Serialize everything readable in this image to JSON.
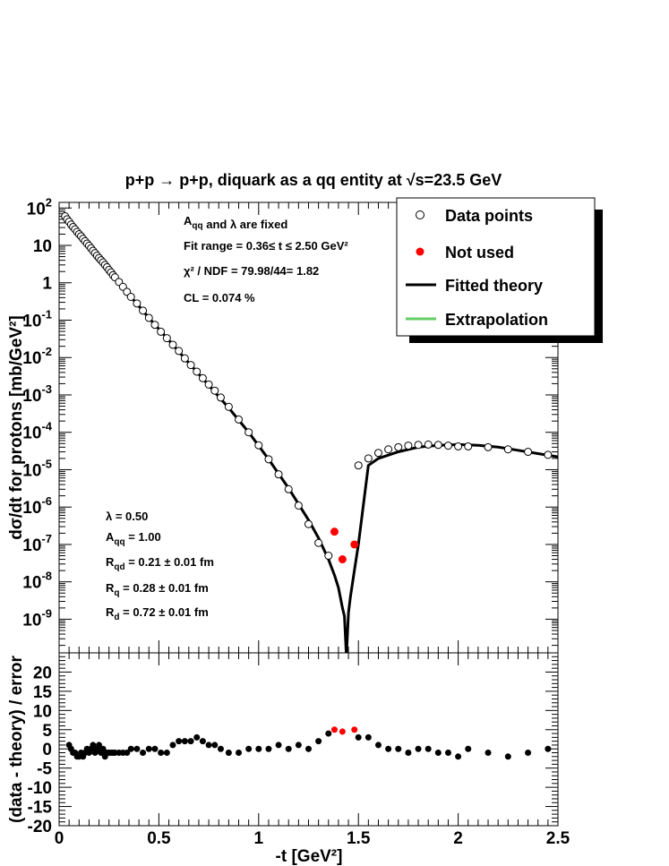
{
  "chart_data": [
    {
      "type": "scatter",
      "title": "p+p → p+p, diquark as a qq entity at √s=23.5 GeV",
      "ylabel": "dσ/dt for protons [mb/GeV²]",
      "xlim": [
        0,
        2.5
      ],
      "ylim": [
        1e-10,
        100
      ],
      "yscale": "log",
      "legend_position": "top-right",
      "series": [
        {
          "name": "Data points",
          "marker": "open-circle",
          "x": [
            0.03,
            0.04,
            0.05,
            0.06,
            0.07,
            0.08,
            0.09,
            0.1,
            0.11,
            0.12,
            0.13,
            0.14,
            0.15,
            0.16,
            0.17,
            0.18,
            0.19,
            0.2,
            0.21,
            0.22,
            0.23,
            0.24,
            0.25,
            0.26,
            0.27,
            0.28,
            0.3,
            0.32,
            0.34,
            0.36,
            0.39,
            0.42,
            0.45,
            0.48,
            0.51,
            0.54,
            0.57,
            0.6,
            0.63,
            0.66,
            0.69,
            0.72,
            0.75,
            0.78,
            0.81,
            0.85,
            0.9,
            0.95,
            1.0,
            1.05,
            1.1,
            1.15,
            1.2,
            1.25,
            1.3,
            1.35,
            1.5,
            1.55,
            1.6,
            1.65,
            1.7,
            1.75,
            1.8,
            1.85,
            1.9,
            1.95,
            2.0,
            2.05,
            2.15,
            2.25,
            2.35,
            2.45
          ],
          "y": [
            60,
            50,
            43,
            36,
            31,
            27,
            23,
            20,
            17.5,
            15,
            13,
            11.2,
            9.8,
            8.4,
            7.2,
            6.2,
            5.3,
            4.6,
            4.0,
            3.5,
            3.0,
            2.6,
            2.2,
            1.9,
            1.6,
            1.4,
            1.05,
            0.78,
            0.57,
            0.42,
            0.28,
            0.18,
            0.115,
            0.075,
            0.049,
            0.033,
            0.022,
            0.015,
            0.0095,
            0.0063,
            0.0042,
            0.0028,
            0.0019,
            0.0013,
            0.00085,
            0.00048,
            0.00022,
            0.0001,
            4.5e-05,
            1.9e-05,
            7.5e-06,
            3e-06,
            1.1e-06,
            3.5e-07,
            1.1e-07,
            5e-08,
            1.3e-05,
            2e-05,
            2.8e-05,
            3.5e-05,
            4e-05,
            4.4e-05,
            4.6e-05,
            4.7e-05,
            4.6e-05,
            4.4e-05,
            4.2e-05,
            4.2e-05,
            4e-05,
            3.5e-05,
            3e-05,
            2.5e-05
          ]
        },
        {
          "name": "Not used",
          "marker": "filled-circle",
          "color": "#ff0000",
          "x": [
            1.38,
            1.42,
            1.48
          ],
          "y": [
            2.2e-07,
            4e-08,
            1e-07
          ]
        },
        {
          "name": "Fitted theory",
          "line": "solid",
          "color": "#000000",
          "x": [
            0.36,
            0.45,
            0.55,
            0.65,
            0.75,
            0.85,
            0.95,
            1.05,
            1.15,
            1.25,
            1.3,
            1.35,
            1.38,
            1.4,
            1.42,
            1.43,
            1.44,
            1.45,
            1.46,
            1.48,
            1.5,
            1.55,
            1.6,
            1.7,
            1.8,
            1.9,
            2.0,
            2.1,
            2.2,
            2.3,
            2.4,
            2.5
          ],
          "y": [
            0.42,
            0.115,
            0.029,
            0.0072,
            0.0018,
            0.00045,
            0.0001,
            1.9e-05,
            3.2e-06,
            4.5e-07,
            1.5e-07,
            4e-08,
            1.5e-08,
            7e-09,
            2e-09,
            1.2e-09,
            1e-10,
            1.5e-09,
            4e-09,
            2e-08,
            1e-07,
            1.3e-05,
            2e-05,
            3e-05,
            4e-05,
            4.5e-05,
            4.7e-05,
            4.5e-05,
            4e-05,
            3.3e-05,
            2.7e-05,
            2.2e-05
          ]
        },
        {
          "name": "Extrapolation",
          "line": "solid",
          "color": "#66cc66",
          "x": [
            0.02,
            0.05,
            0.1,
            0.15,
            0.2,
            0.25,
            0.3,
            0.36
          ],
          "y": [
            60,
            43,
            20,
            9.8,
            4.6,
            2.2,
            1.05,
            0.42
          ]
        }
      ],
      "annotations_top": [
        "A<sub>qq</sub> and λ are fixed",
        "Fit range = 0.36≤ t ≤ 2.50 GeV²",
        "χ² / NDF = 79.98/44= 1.82",
        "CL = 0.074 %"
      ],
      "annotations_bottom": [
        "λ = 0.50",
        "Aqq = 1.00",
        "Rqd = 0.21 ± 0.01 fm",
        "Rq = 0.28 ± 0.01 fm",
        "Rd = 0.72 ± 0.01 fm"
      ]
    },
    {
      "type": "scatter",
      "xlabel": "-t [GeV²]",
      "ylabel": "(data - theory) / error",
      "xlim": [
        0,
        2.5
      ],
      "ylim": [
        -20,
        25
      ],
      "series": [
        {
          "name": "Used residuals",
          "marker": "filled-circle",
          "color": "#000000",
          "x": [
            0.05,
            0.06,
            0.07,
            0.08,
            0.09,
            0.1,
            0.11,
            0.12,
            0.13,
            0.14,
            0.15,
            0.16,
            0.17,
            0.18,
            0.19,
            0.2,
            0.21,
            0.22,
            0.23,
            0.24,
            0.25,
            0.26,
            0.27,
            0.28,
            0.3,
            0.32,
            0.34,
            0.36,
            0.39,
            0.42,
            0.45,
            0.48,
            0.51,
            0.54,
            0.57,
            0.6,
            0.63,
            0.66,
            0.69,
            0.72,
            0.75,
            0.78,
            0.81,
            0.85,
            0.9,
            0.95,
            1.0,
            1.05,
            1.1,
            1.15,
            1.2,
            1.25,
            1.3,
            1.35,
            1.5,
            1.55,
            1.6,
            1.65,
            1.7,
            1.75,
            1.8,
            1.85,
            1.9,
            1.95,
            2.0,
            2.05,
            2.15,
            2.25,
            2.35,
            2.45
          ],
          "y": [
            1,
            0,
            -1,
            -1,
            -2,
            -2,
            -1,
            -2,
            -1,
            0,
            -1,
            0,
            1,
            -1,
            0,
            1,
            -1,
            0,
            -2,
            -1,
            -1,
            -1,
            -1,
            -1,
            -1,
            -1,
            -1,
            0,
            0,
            -1,
            0,
            0,
            -1,
            -1,
            1,
            2,
            2,
            2,
            3,
            2,
            1,
            1,
            0,
            -1,
            -1,
            0,
            0,
            0,
            1,
            0,
            1,
            0,
            2,
            4,
            3,
            3,
            1,
            0,
            0,
            -1,
            0,
            0,
            -1,
            -1,
            -2,
            0,
            -1,
            -2,
            -1,
            0
          ]
        },
        {
          "name": "Not used",
          "marker": "filled-circle",
          "color": "#ff0000",
          "x": [
            1.38,
            1.42,
            1.48
          ],
          "y": [
            5,
            4.5,
            5
          ]
        }
      ]
    }
  ],
  "axes": {
    "x_ticks": [
      "0",
      "0.5",
      "1",
      "1.5",
      "2",
      "2.5"
    ],
    "x_tick_values": [
      0,
      0.5,
      1,
      1.5,
      2,
      2.5
    ],
    "upper_y_ticks": [
      {
        "base": "10",
        "exp": "2",
        "val": 100
      },
      {
        "base": "10",
        "exp": "",
        "val": 10
      },
      {
        "base": "1",
        "exp": "",
        "val": 1
      },
      {
        "base": "10",
        "exp": "-1",
        "val": 0.1
      },
      {
        "base": "10",
        "exp": "-2",
        "val": 0.01
      },
      {
        "base": "10",
        "exp": "-3",
        "val": 0.001
      },
      {
        "base": "10",
        "exp": "-4",
        "val": 0.0001
      },
      {
        "base": "10",
        "exp": "-5",
        "val": 1e-05
      },
      {
        "base": "10",
        "exp": "-6",
        "val": 1e-06
      },
      {
        "base": "10",
        "exp": "-7",
        "val": 1e-07
      },
      {
        "base": "10",
        "exp": "-8",
        "val": 1e-08
      },
      {
        "base": "10",
        "exp": "-9",
        "val": 1e-09
      }
    ],
    "lower_y_ticks": [
      "20",
      "15",
      "10",
      "5",
      "0",
      "-5",
      "-10",
      "-15",
      "-20"
    ],
    "lower_y_tick_values": [
      20,
      15,
      10,
      5,
      0,
      -5,
      -10,
      -15,
      -20
    ]
  }
}
